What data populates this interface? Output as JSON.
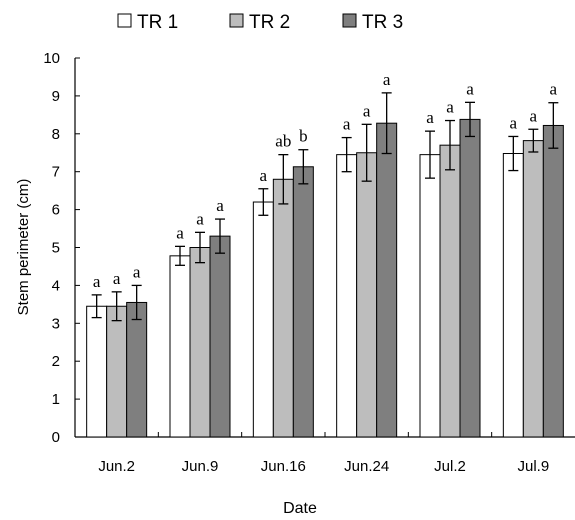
{
  "chart_data": {
    "type": "bar",
    "categories": [
      "Jun.2",
      "Jun.9",
      "Jun.16",
      "Jun.24",
      "Jul.2",
      "Jul.9"
    ],
    "series": [
      {
        "name": "TR 1",
        "color": "#ffffff",
        "values": [
          3.45,
          4.78,
          6.2,
          7.45,
          7.45,
          7.48
        ],
        "errors": [
          0.3,
          0.25,
          0.35,
          0.45,
          0.62,
          0.45
        ],
        "labels": [
          "a",
          "a",
          "a",
          "a",
          "a",
          "a"
        ]
      },
      {
        "name": "TR 2",
        "color": "#bdbdbd",
        "values": [
          3.45,
          5.0,
          6.8,
          7.5,
          7.7,
          7.82
        ],
        "errors": [
          0.38,
          0.4,
          0.65,
          0.75,
          0.65,
          0.3
        ],
        "labels": [
          "a",
          "a",
          "ab",
          "a",
          "a",
          "a"
        ]
      },
      {
        "name": "TR 3",
        "color": "#7f7f7f",
        "values": [
          3.55,
          5.3,
          7.13,
          8.28,
          8.38,
          8.22
        ],
        "errors": [
          0.45,
          0.45,
          0.45,
          0.8,
          0.45,
          0.6
        ],
        "labels": [
          "a",
          "a",
          "b",
          "a",
          "a",
          "a"
        ]
      }
    ],
    "xlabel": "Date",
    "ylabel": "Stem perimeter (cm)",
    "ylim": [
      0,
      10
    ],
    "yticks": [
      "0",
      "1",
      "2",
      "3",
      "4",
      "5",
      "6",
      "7",
      "8",
      "9",
      "10"
    ],
    "grid": false,
    "legend": "top"
  }
}
